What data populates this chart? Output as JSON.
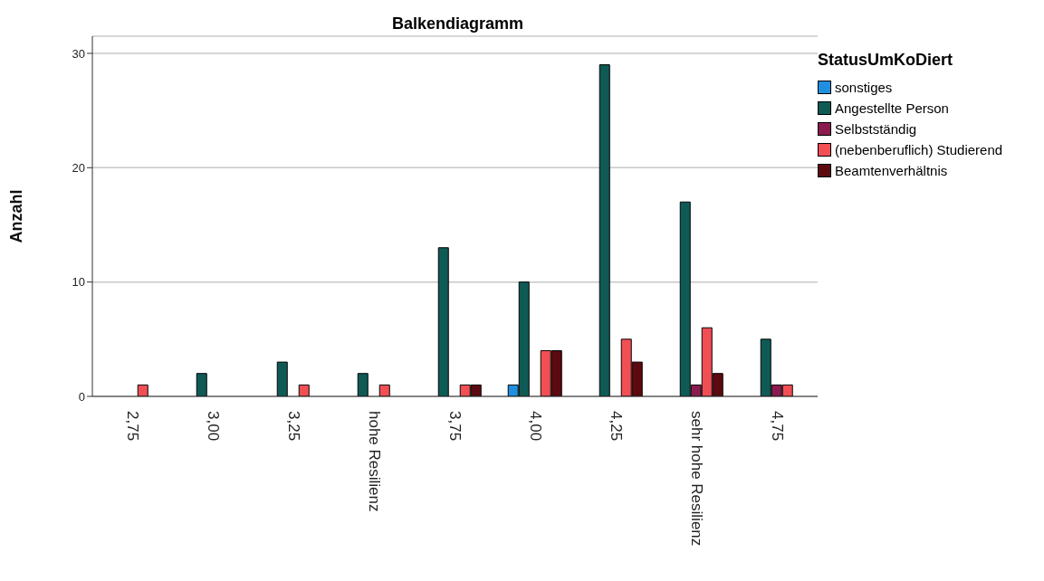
{
  "chart_data": {
    "type": "bar",
    "title": "Balkendiagramm",
    "ylabel": "Anzahl",
    "legend_title": "StatusUmKoDiert",
    "categories": [
      "2,75",
      "3,00",
      "3,25",
      "hohe Resilienz",
      "3,75",
      "4,00",
      "4,25",
      "sehr hohe Resilienz",
      "4,75"
    ],
    "series": [
      {
        "name": "sonstiges",
        "color": "#1f8fe0",
        "values": [
          null,
          null,
          null,
          null,
          null,
          1,
          null,
          null,
          null
        ]
      },
      {
        "name": "Angestellte Person",
        "color": "#0f5a55",
        "values": [
          null,
          2,
          3,
          2,
          13,
          10,
          29,
          17,
          5
        ]
      },
      {
        "name": "Selbstständig",
        "color": "#8b1a4f",
        "values": [
          null,
          null,
          null,
          null,
          null,
          null,
          null,
          1,
          1
        ]
      },
      {
        "name": "(nebenberuflich) Studierend",
        "color": "#f24f55",
        "values": [
          1,
          null,
          1,
          1,
          1,
          4,
          5,
          6,
          1
        ]
      },
      {
        "name": "Beamtenverhältnis",
        "color": "#5c0a0f",
        "values": [
          null,
          null,
          null,
          null,
          1,
          4,
          3,
          2,
          null
        ]
      }
    ],
    "ylim": [
      0,
      31.5
    ],
    "yticks": [
      0,
      10,
      20,
      30
    ],
    "grid": "y",
    "legend": "top right"
  }
}
